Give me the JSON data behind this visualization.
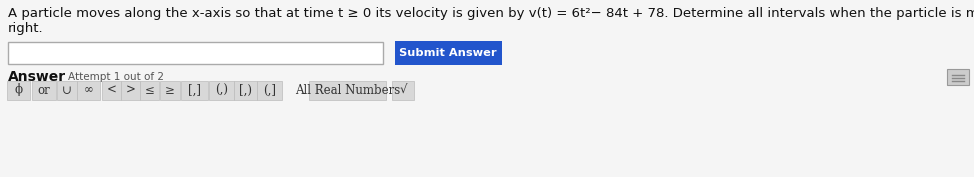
{
  "bg_color": "#f5f5f5",
  "title_line1": "A particle moves along the x-axis so that at time t ≥ 0 its velocity is given by v(t) = 6t²− 84t + 78. Determine all intervals when the particle is moving to the",
  "title_line2": "right.",
  "answer_label": "Answer",
  "attempt_label": "Attempt 1 out of 2",
  "input_box_color": "#ffffff",
  "input_box_border": "#aaaaaa",
  "submit_btn_color": "#2255cc",
  "submit_btn_text": "Submit Answer",
  "submit_btn_text_color": "#ffffff",
  "toolbar_items": [
    "ϕ",
    "or",
    "∪",
    "∞",
    "<",
    ">",
    "≤",
    "≥",
    "[,]",
    "(,)",
    "[,)",
    "(,]",
    "All Real Numbers",
    "√"
  ],
  "toolbar_bg": "#d8d8d8",
  "toolbar_text_color": "#333333",
  "overall_bg": "#f5f5f5",
  "top_right_btn_color": "#cccccc"
}
